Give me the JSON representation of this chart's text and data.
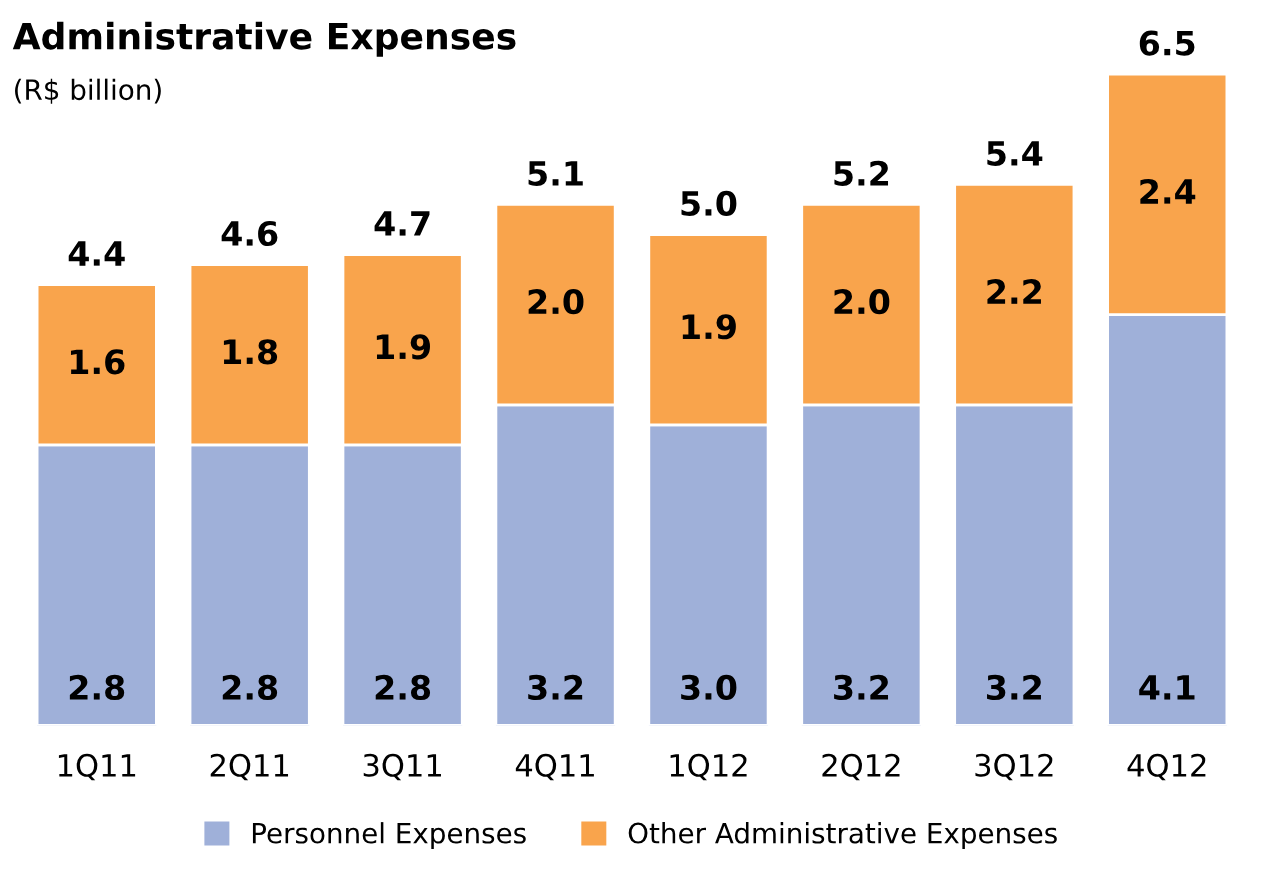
{
  "chart_data": {
    "type": "bar",
    "title": "Administrative Expenses",
    "subtitle": "(R$ billion)",
    "stacked": true,
    "legend": "bottom",
    "categories": [
      "1Q11",
      "2Q11",
      "3Q11",
      "4Q11",
      "1Q12",
      "2Q12",
      "3Q12",
      "4Q12"
    ],
    "series": [
      {
        "name": "Personnel Expenses",
        "color": "#9fb0d9",
        "values": [
          2.8,
          2.8,
          2.8,
          3.2,
          3.0,
          3.2,
          3.2,
          4.1
        ],
        "value_labels": [
          "2.8",
          "2.8",
          "2.8",
          "3.2",
          "3.0",
          "3.2",
          "3.2",
          "4.1"
        ]
      },
      {
        "name": "Other Administrative Expenses",
        "color": "#f9a44c",
        "values": [
          1.6,
          1.8,
          1.9,
          2.0,
          1.9,
          2.0,
          2.2,
          2.4
        ],
        "value_labels": [
          "1.6",
          "1.8",
          "1.9",
          "2.0",
          "1.9",
          "2.0",
          "2.2",
          "2.4"
        ]
      }
    ],
    "totals": [
      "4.4",
      "4.6",
      "4.7",
      "5.1",
      "5.0",
      "5.2",
      "5.4",
      "6.5"
    ]
  }
}
